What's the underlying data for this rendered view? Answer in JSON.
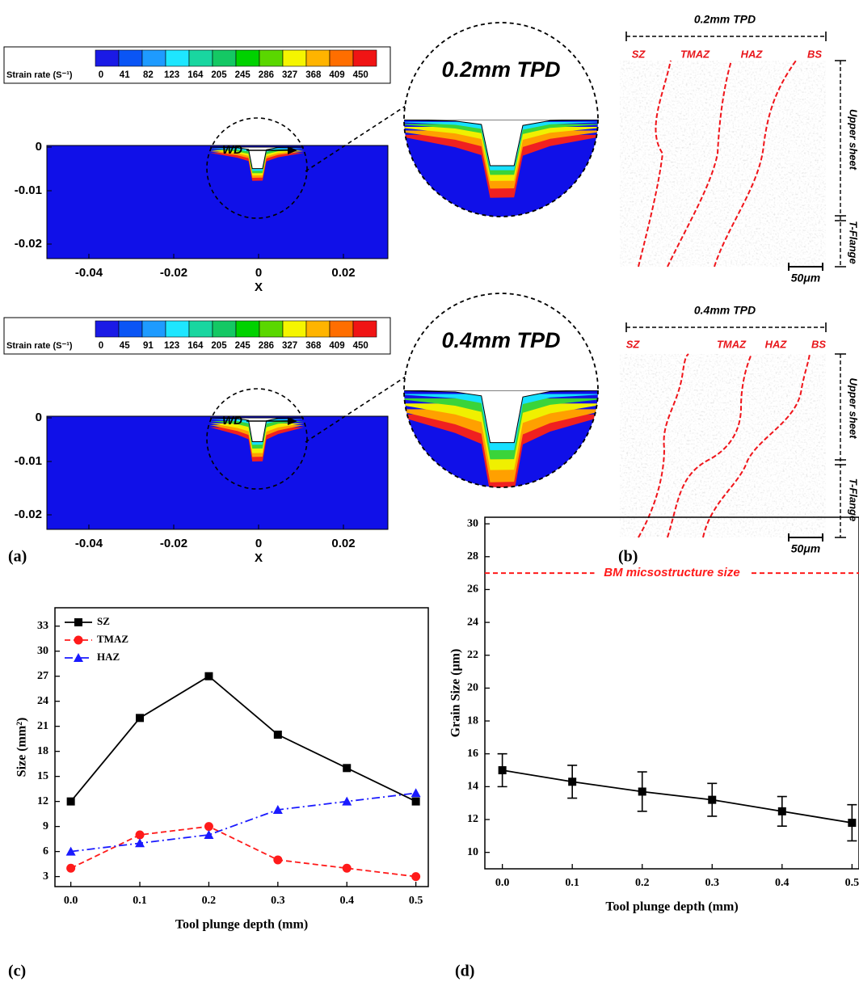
{
  "panel_a": {
    "label": "(a)",
    "colorbar_title": "Strain rate (S⁻¹)",
    "plots": [
      {
        "levels": [
          0,
          41,
          82,
          123,
          164,
          205,
          245,
          286,
          327,
          368,
          409,
          450
        ],
        "zoom_label": "0.2mm TPD",
        "direction": "WD",
        "yticks": [
          "0",
          "-0.01",
          "-0.02"
        ],
        "xticks": [
          "-0.04",
          "-0.02",
          "0",
          "0.02"
        ],
        "xlabel": "X"
      },
      {
        "levels": [
          0,
          45,
          91,
          123,
          164,
          205,
          245,
          286,
          327,
          368,
          409,
          450
        ],
        "zoom_label": "0.4mm TPD",
        "direction": "WD",
        "yticks": [
          "0",
          "-0.01",
          "-0.02"
        ],
        "xticks": [
          "-0.04",
          "-0.02",
          "0",
          "0.02"
        ],
        "xlabel": "X"
      }
    ]
  },
  "panel_b": {
    "label": "(b)",
    "images": [
      {
        "title": "0.2mm TPD",
        "zones": [
          "SZ",
          "TMAZ",
          "HAZ",
          "BS"
        ],
        "layers": [
          "Upper sheet",
          "T-Flange"
        ],
        "scale": "50μm"
      },
      {
        "title": "0.4mm TPD",
        "zones": [
          "SZ",
          "TMAZ",
          "HAZ",
          "BS"
        ],
        "layers": [
          "Upper sheet",
          "T-Flange"
        ],
        "scale": "50μm"
      }
    ]
  },
  "chart_data": [
    {
      "type": "line",
      "panel_label": "(c)",
      "x_label": "Tool plunge depth (mm)",
      "y_label": "Size (mm²)",
      "x": [
        0,
        0.1,
        0.2,
        0.3,
        0.4,
        0.5
      ],
      "xlim": [
        -0.023,
        0.518
      ],
      "ylim": [
        1.8,
        35.2
      ],
      "xticks": [
        {
          "value": 0,
          "label": "0.0"
        },
        0.1,
        0.2,
        0.3,
        0.4,
        0.5
      ],
      "yticks": [
        3,
        6,
        9,
        12,
        15,
        18,
        21,
        24,
        27,
        30,
        33
      ],
      "legend": "upper left",
      "series": [
        {
          "name": "SZ",
          "color": "#000000",
          "marker": "square",
          "dash": "solid",
          "values": [
            12,
            22,
            27,
            20,
            16,
            12
          ]
        },
        {
          "name": "TMAZ",
          "color": "#ff1a1a",
          "marker": "circle",
          "dash": "dashed",
          "values": [
            4,
            8,
            9,
            5,
            4,
            3
          ]
        },
        {
          "name": "HAZ",
          "color": "#1a1aff",
          "marker": "triangle",
          "dash": "dashdot",
          "values": [
            6,
            7,
            8,
            11,
            12,
            13
          ]
        }
      ]
    },
    {
      "type": "line",
      "panel_label": "(d)",
      "x_label": "Tool plunge depth (mm)",
      "y_label": "Grain Size (µm)",
      "x": [
        0,
        0.1,
        0.2,
        0.3,
        0.4,
        0.5
      ],
      "xlim": [
        -0.025,
        0.51
      ],
      "ylim": [
        9,
        30.4
      ],
      "xticks": [
        {
          "value": 0,
          "label": "0.0"
        },
        0.1,
        0.2,
        0.3,
        0.4,
        0.5
      ],
      "yticks": [
        10,
        12,
        14,
        16,
        18,
        20,
        22,
        24,
        26,
        28,
        30
      ],
      "series": [
        {
          "color": "#000000",
          "marker": "square",
          "dash": "solid",
          "values": [
            15,
            14.3,
            13.7,
            13.2,
            12.5,
            11.8
          ],
          "errors": [
            1,
            1,
            1.2,
            1,
            0.9,
            1.1
          ]
        }
      ],
      "reference_line": {
        "value": 27,
        "label": "BM micsostructure size",
        "color": "#ff1a1a"
      }
    }
  ]
}
